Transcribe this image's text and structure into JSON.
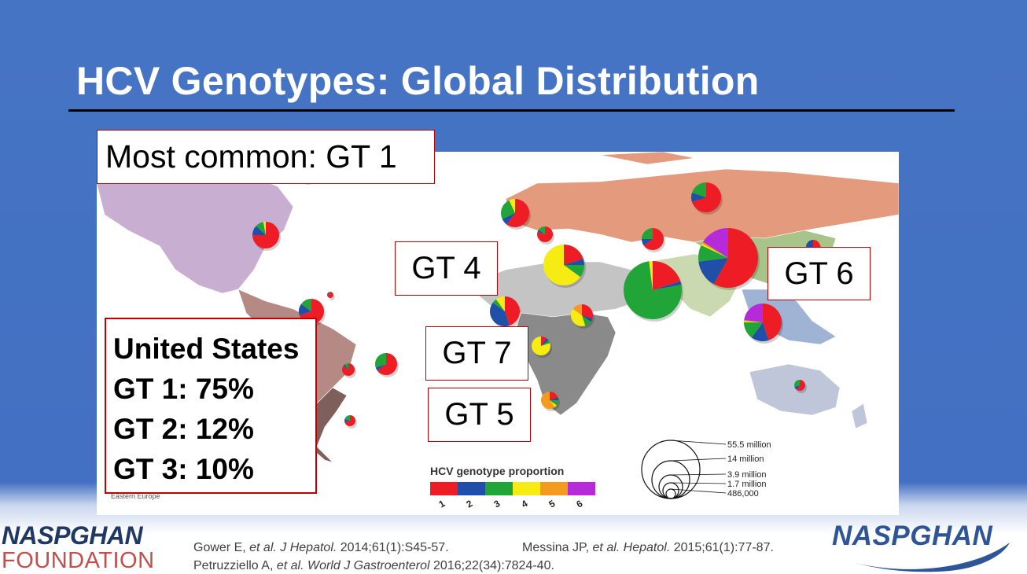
{
  "slide": {
    "title": "HCV Genotypes:  Global Distribution"
  },
  "callouts": {
    "most_common": "Most common: GT 1",
    "gt4": "GT 4",
    "gt6": "GT 6",
    "gt7": "GT 7",
    "gt5": "GT 5"
  },
  "us_box": {
    "heading": "United States",
    "lines": [
      "GT 1: 75%",
      "GT 2: 12%",
      "GT 3: 10%"
    ]
  },
  "legend": {
    "proportion_title": "HCV genotype proportion",
    "genotypes": [
      {
        "label": "1",
        "color": "#ee1c24"
      },
      {
        "label": "2",
        "color": "#1f4fa8"
      },
      {
        "label": "3",
        "color": "#22a538"
      },
      {
        "label": "4",
        "color": "#f6ec14"
      },
      {
        "label": "5",
        "color": "#f39a1f"
      },
      {
        "label": "6",
        "color": "#b62bd9"
      }
    ],
    "size_labels": [
      "55.5 million",
      "14 million",
      "3.9 million",
      "1.7 million",
      "486,000"
    ],
    "region_fragment": "Eastern Europe"
  },
  "map": {
    "region_colors": {
      "north_america": "#c8aed0",
      "central_latin_america": "#b58a84",
      "southern_latin_america": "#7f5f5c",
      "north_africa_middle_east": "#c4c4c4",
      "sub_saharan_africa": "#8a8a8a",
      "central_europe_asia": "#e39a7d",
      "south_asia": "#cbd9b0",
      "east_asia": "#a9c48a",
      "southeast_asia": "#9fb4d4",
      "australasia": "#c0c6da"
    },
    "pies": [
      {
        "region": "north-america",
        "values": [
          75,
          12,
          10,
          3
        ]
      },
      {
        "region": "central-america",
        "values": [
          70,
          15,
          15
        ]
      },
      {
        "region": "caribbean",
        "values": [
          80,
          10,
          10
        ]
      },
      {
        "region": "andean",
        "values": [
          85,
          5,
          10
        ]
      },
      {
        "region": "tropical-latin-america",
        "values": [
          65,
          5,
          30
        ]
      },
      {
        "region": "southern-latin-america",
        "values": [
          70,
          10,
          20
        ]
      },
      {
        "region": "western-europe",
        "values": [
          60,
          8,
          25,
          7
        ]
      },
      {
        "region": "central-europe",
        "values": [
          80,
          5,
          15
        ]
      },
      {
        "region": "north-africa-middle-east",
        "values": [
          20,
          5,
          10,
          65
        ]
      },
      {
        "region": "west-africa",
        "values": [
          45,
          40,
          5,
          10
        ]
      },
      {
        "region": "central-africa",
        "values": [
          10,
          5,
          5,
          80
        ]
      },
      {
        "region": "east-africa",
        "values": [
          30,
          5,
          10,
          40,
          15
        ]
      },
      {
        "region": "southern-africa",
        "values": [
          20,
          5,
          10,
          5,
          60
        ]
      },
      {
        "region": "central-asia",
        "values": [
          65,
          10,
          25
        ]
      },
      {
        "region": "russia",
        "values": [
          70,
          10,
          20
        ]
      },
      {
        "region": "south-asia",
        "values": [
          20,
          2,
          76,
          2
        ]
      },
      {
        "region": "east-asia",
        "values": [
          58,
          15,
          9,
          1,
          1,
          16
        ]
      },
      {
        "region": "southeast-asia",
        "values": [
          45,
          15,
          15,
          1,
          1,
          23
        ]
      },
      {
        "region": "japan-korea",
        "values": [
          70,
          30
        ]
      },
      {
        "region": "australasia",
        "values": [
          60,
          10,
          30
        ]
      }
    ]
  },
  "footer": {
    "ref1_pre": "Gower E, ",
    "ref1_etal": "et al. ",
    "ref1_journal": "J Hepatol.",
    "ref1_rest": " 2014;61(1):S45-57.",
    "ref2_pre": "Messina JP, ",
    "ref2_etal": "et al. ",
    "ref2_journal": "Hepatol.",
    "ref2_rest": " 2015;61(1):77-87.",
    "ref3_pre": "Petruzziello A, ",
    "ref3_etal": "et al. ",
    "ref3_journal": " World J Gastroenterol",
    "ref3_rest": " 2016;22(34):7824-40.",
    "logo_left_line1": "NASPGHAN",
    "logo_left_line2": "FOUNDATION",
    "logo_right": "NASPGHAN"
  }
}
